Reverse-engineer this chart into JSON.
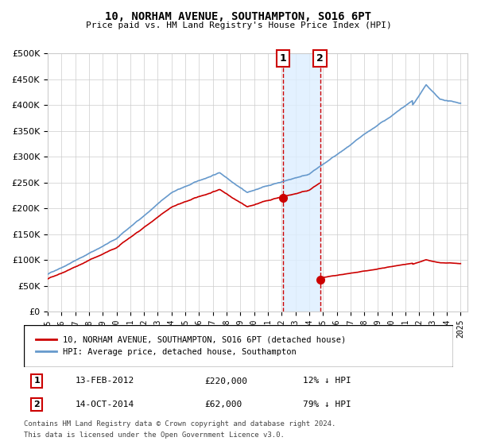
{
  "title": "10, NORHAM AVENUE, SOUTHAMPTON, SO16 6PT",
  "subtitle": "Price paid vs. HM Land Registry's House Price Index (HPI)",
  "legend_label_red": "10, NORHAM AVENUE, SOUTHAMPTON, SO16 6PT (detached house)",
  "legend_label_blue": "HPI: Average price, detached house, Southampton",
  "annotation1_date": "13-FEB-2012",
  "annotation1_price": "£220,000",
  "annotation1_hpi": "12% ↓ HPI",
  "annotation2_date": "14-OCT-2014",
  "annotation2_price": "£62,000",
  "annotation2_hpi": "79% ↓ HPI",
  "footnote_line1": "Contains HM Land Registry data © Crown copyright and database right 2024.",
  "footnote_line2": "This data is licensed under the Open Government Licence v3.0.",
  "ylim": [
    0,
    500000
  ],
  "yticks": [
    0,
    50000,
    100000,
    150000,
    200000,
    250000,
    300000,
    350000,
    400000,
    450000,
    500000
  ],
  "red_color": "#cc0000",
  "blue_color": "#6699cc",
  "grid_color": "#cccccc",
  "shade_color": "#ddeeff",
  "sale1_t": 2012.1,
  "sale1_price": 220000,
  "sale2_t": 2014.79,
  "sale2_price": 62000,
  "xmin": 1995,
  "xmax": 2025.5
}
